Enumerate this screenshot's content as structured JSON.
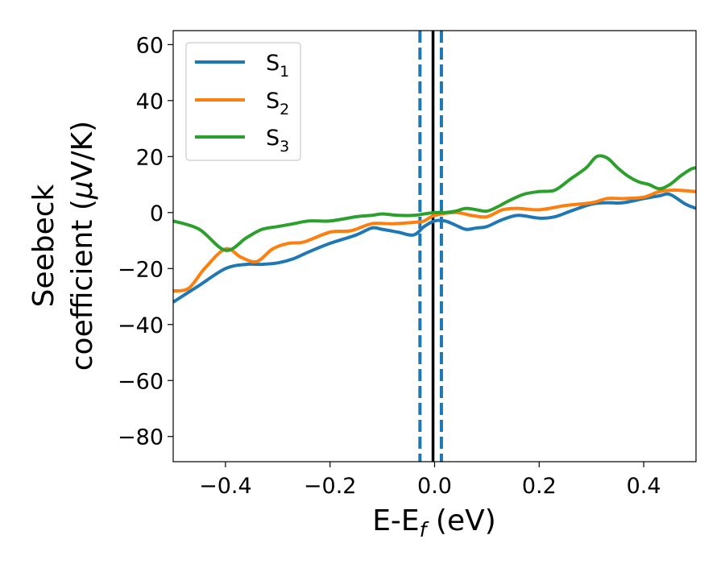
{
  "chart_data": {
    "type": "line",
    "xlabel": {
      "main": "E-E",
      "sub": "f",
      "unit": " (eV)"
    },
    "ylabel": {
      "line1": "Seebeck",
      "line2_prefix": "coefficient  (",
      "mu": "μ",
      "line2_suffix": "V/K)"
    },
    "xlim": [
      -0.5,
      0.5
    ],
    "ylim": [
      -89,
      65
    ],
    "x_ticks": [
      -0.4,
      -0.2,
      0.0,
      0.2,
      0.4
    ],
    "x_tick_labels": [
      "−0.4",
      "−0.2",
      "0.0",
      "0.2",
      "0.4"
    ],
    "y_ticks": [
      60,
      40,
      20,
      0,
      -20,
      -40,
      -60,
      -80
    ],
    "y_tick_labels": [
      "60",
      "40",
      "20",
      "0",
      "−20",
      "−40",
      "−60",
      "−80"
    ],
    "legend_position": "upper-left",
    "legend": [
      {
        "label": "S",
        "sub": "1",
        "color": "#1f77b4"
      },
      {
        "label": "S",
        "sub": "2",
        "color": "#ff7f0e"
      },
      {
        "label": "S",
        "sub": "3",
        "color": "#2ca02c"
      }
    ],
    "reference_lines": [
      {
        "x": -0.028,
        "color": "#1f77b4",
        "style": "dashed"
      },
      {
        "x": -0.003,
        "color": "#000000",
        "style": "solid"
      },
      {
        "x": 0.013,
        "color": "#1f77b4",
        "style": "dashed"
      }
    ],
    "series": [
      {
        "name": "S1",
        "color": "#1f77b4",
        "x": [
          -0.5,
          -0.45,
          -0.4,
          -0.36,
          -0.33,
          -0.3,
          -0.27,
          -0.24,
          -0.2,
          -0.15,
          -0.12,
          -0.1,
          -0.07,
          -0.04,
          -0.02,
          0.0,
          0.02,
          0.04,
          0.06,
          0.08,
          0.1,
          0.13,
          0.16,
          0.2,
          0.23,
          0.26,
          0.3,
          0.33,
          0.36,
          0.4,
          0.43,
          0.45,
          0.48,
          0.5
        ],
        "y": [
          -32,
          -26,
          -20,
          -18.5,
          -18.5,
          -18,
          -16.5,
          -14,
          -11,
          -8,
          -5.5,
          -6,
          -7,
          -8,
          -5,
          -3,
          -3,
          -4.5,
          -6,
          -5.5,
          -5,
          -2.5,
          -1,
          -2,
          -1.5,
          0.5,
          3,
          3.5,
          3.5,
          5,
          6,
          6.5,
          3,
          1.5
        ]
      },
      {
        "name": "S2",
        "color": "#ff7f0e",
        "x": [
          -0.5,
          -0.47,
          -0.44,
          -0.4,
          -0.37,
          -0.34,
          -0.31,
          -0.28,
          -0.25,
          -0.2,
          -0.16,
          -0.12,
          -0.08,
          -0.04,
          -0.02,
          0.0,
          0.04,
          0.07,
          0.1,
          0.13,
          0.16,
          0.2,
          0.25,
          0.3,
          0.33,
          0.36,
          0.4,
          0.43,
          0.46,
          0.5
        ],
        "y": [
          -28,
          -27,
          -20,
          -13,
          -16,
          -17.5,
          -13,
          -11,
          -10.5,
          -7,
          -6.5,
          -4,
          -4,
          -3.5,
          -3,
          -1,
          0,
          -1,
          -1.5,
          1,
          1.5,
          1,
          2.5,
          3.5,
          5,
          5,
          5.5,
          7.5,
          8,
          7.5
        ]
      },
      {
        "name": "S3",
        "color": "#2ca02c",
        "x": [
          -0.5,
          -0.45,
          -0.4,
          -0.36,
          -0.33,
          -0.3,
          -0.27,
          -0.24,
          -0.2,
          -0.15,
          -0.12,
          -0.1,
          -0.07,
          -0.04,
          -0.02,
          0.0,
          0.02,
          0.04,
          0.06,
          0.08,
          0.1,
          0.12,
          0.14,
          0.17,
          0.2,
          0.23,
          0.26,
          0.29,
          0.31,
          0.33,
          0.35,
          0.37,
          0.39,
          0.41,
          0.43,
          0.45,
          0.47,
          0.49,
          0.5
        ],
        "y": [
          -3,
          -6,
          -13.5,
          -9,
          -6,
          -5,
          -4,
          -3,
          -3,
          -1.5,
          -1,
          -0.5,
          -1,
          -1,
          -0.5,
          0,
          0,
          0.5,
          1.5,
          1,
          0.5,
          2,
          4,
          6.5,
          7.5,
          8,
          12,
          16,
          20,
          19.5,
          16,
          13,
          11,
          10,
          8.5,
          10,
          13,
          15.5,
          16
        ]
      }
    ]
  }
}
